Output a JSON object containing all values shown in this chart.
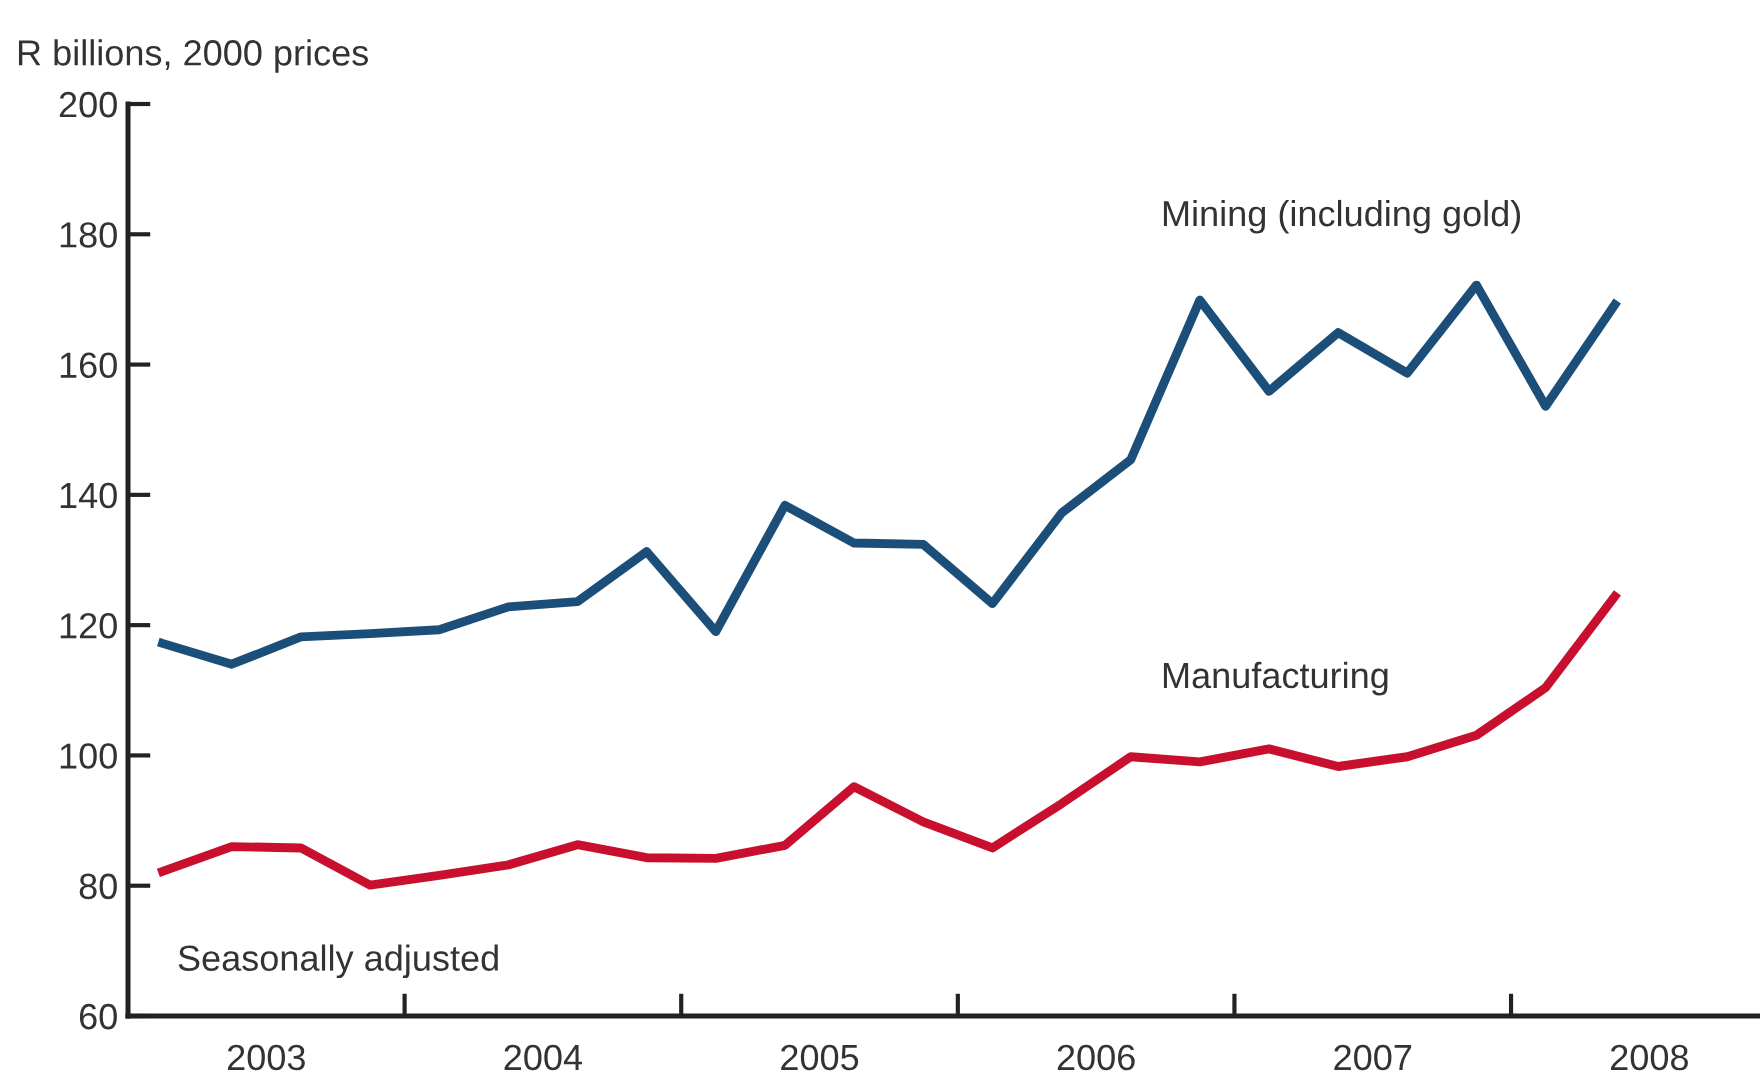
{
  "chart_data": {
    "type": "line",
    "ylabel": "R billions, 2000 prices",
    "x": [
      2003.125,
      2003.375,
      2003.625,
      2003.875,
      2004.125,
      2004.375,
      2004.625,
      2004.875,
      2005.125,
      2005.375,
      2005.625,
      2005.875,
      2006.125,
      2006.375,
      2006.625,
      2006.875,
      2007.125,
      2007.375,
      2007.625,
      2007.875,
      2008.125,
      2008.375
    ],
    "series": [
      {
        "name": "Mining (including gold)",
        "color": "#1b4f7a",
        "values": [
          117.2,
          114.0,
          118.2,
          118.7,
          119.3,
          122.8,
          123.6,
          131.3,
          119.0,
          138.4,
          132.6,
          132.4,
          123.3,
          137.2,
          145.4,
          169.9,
          155.9,
          164.9,
          158.7,
          172.2,
          153.6,
          169.2
        ]
      },
      {
        "name": "Manufacturing",
        "color": "#c8102e",
        "values": [
          82.2,
          86.0,
          85.8,
          80.1,
          81.6,
          83.2,
          86.3,
          84.3,
          84.2,
          86.2,
          95.2,
          89.8,
          85.8,
          92.6,
          99.8,
          99.0,
          101.0,
          98.3,
          99.8,
          103.1,
          110.4,
          124.4
        ]
      }
    ],
    "xlim": [
      2003,
      2008.9
    ],
    "xticks": [
      {
        "value": 2003.5,
        "label": "2003"
      },
      {
        "value": 2004.5,
        "label": "2004"
      },
      {
        "value": 2005.5,
        "label": "2005"
      },
      {
        "value": 2006.5,
        "label": "2006"
      },
      {
        "value": 2007.5,
        "label": "2007"
      },
      {
        "value": 2008.5,
        "label": "2008"
      },
      {
        "value": 2004,
        "label": null
      },
      {
        "value": 2005,
        "label": null
      },
      {
        "value": 2006,
        "label": null
      },
      {
        "value": 2007,
        "label": null
      },
      {
        "value": 2008,
        "label": null
      }
    ],
    "ylim": [
      60,
      200
    ],
    "yticks": [
      60,
      80,
      100,
      120,
      140,
      160,
      180,
      200
    ],
    "grid": false,
    "legend": false,
    "marker": "none",
    "line_style": "solid",
    "annotations": [
      "Seasonally adjusted"
    ]
  }
}
